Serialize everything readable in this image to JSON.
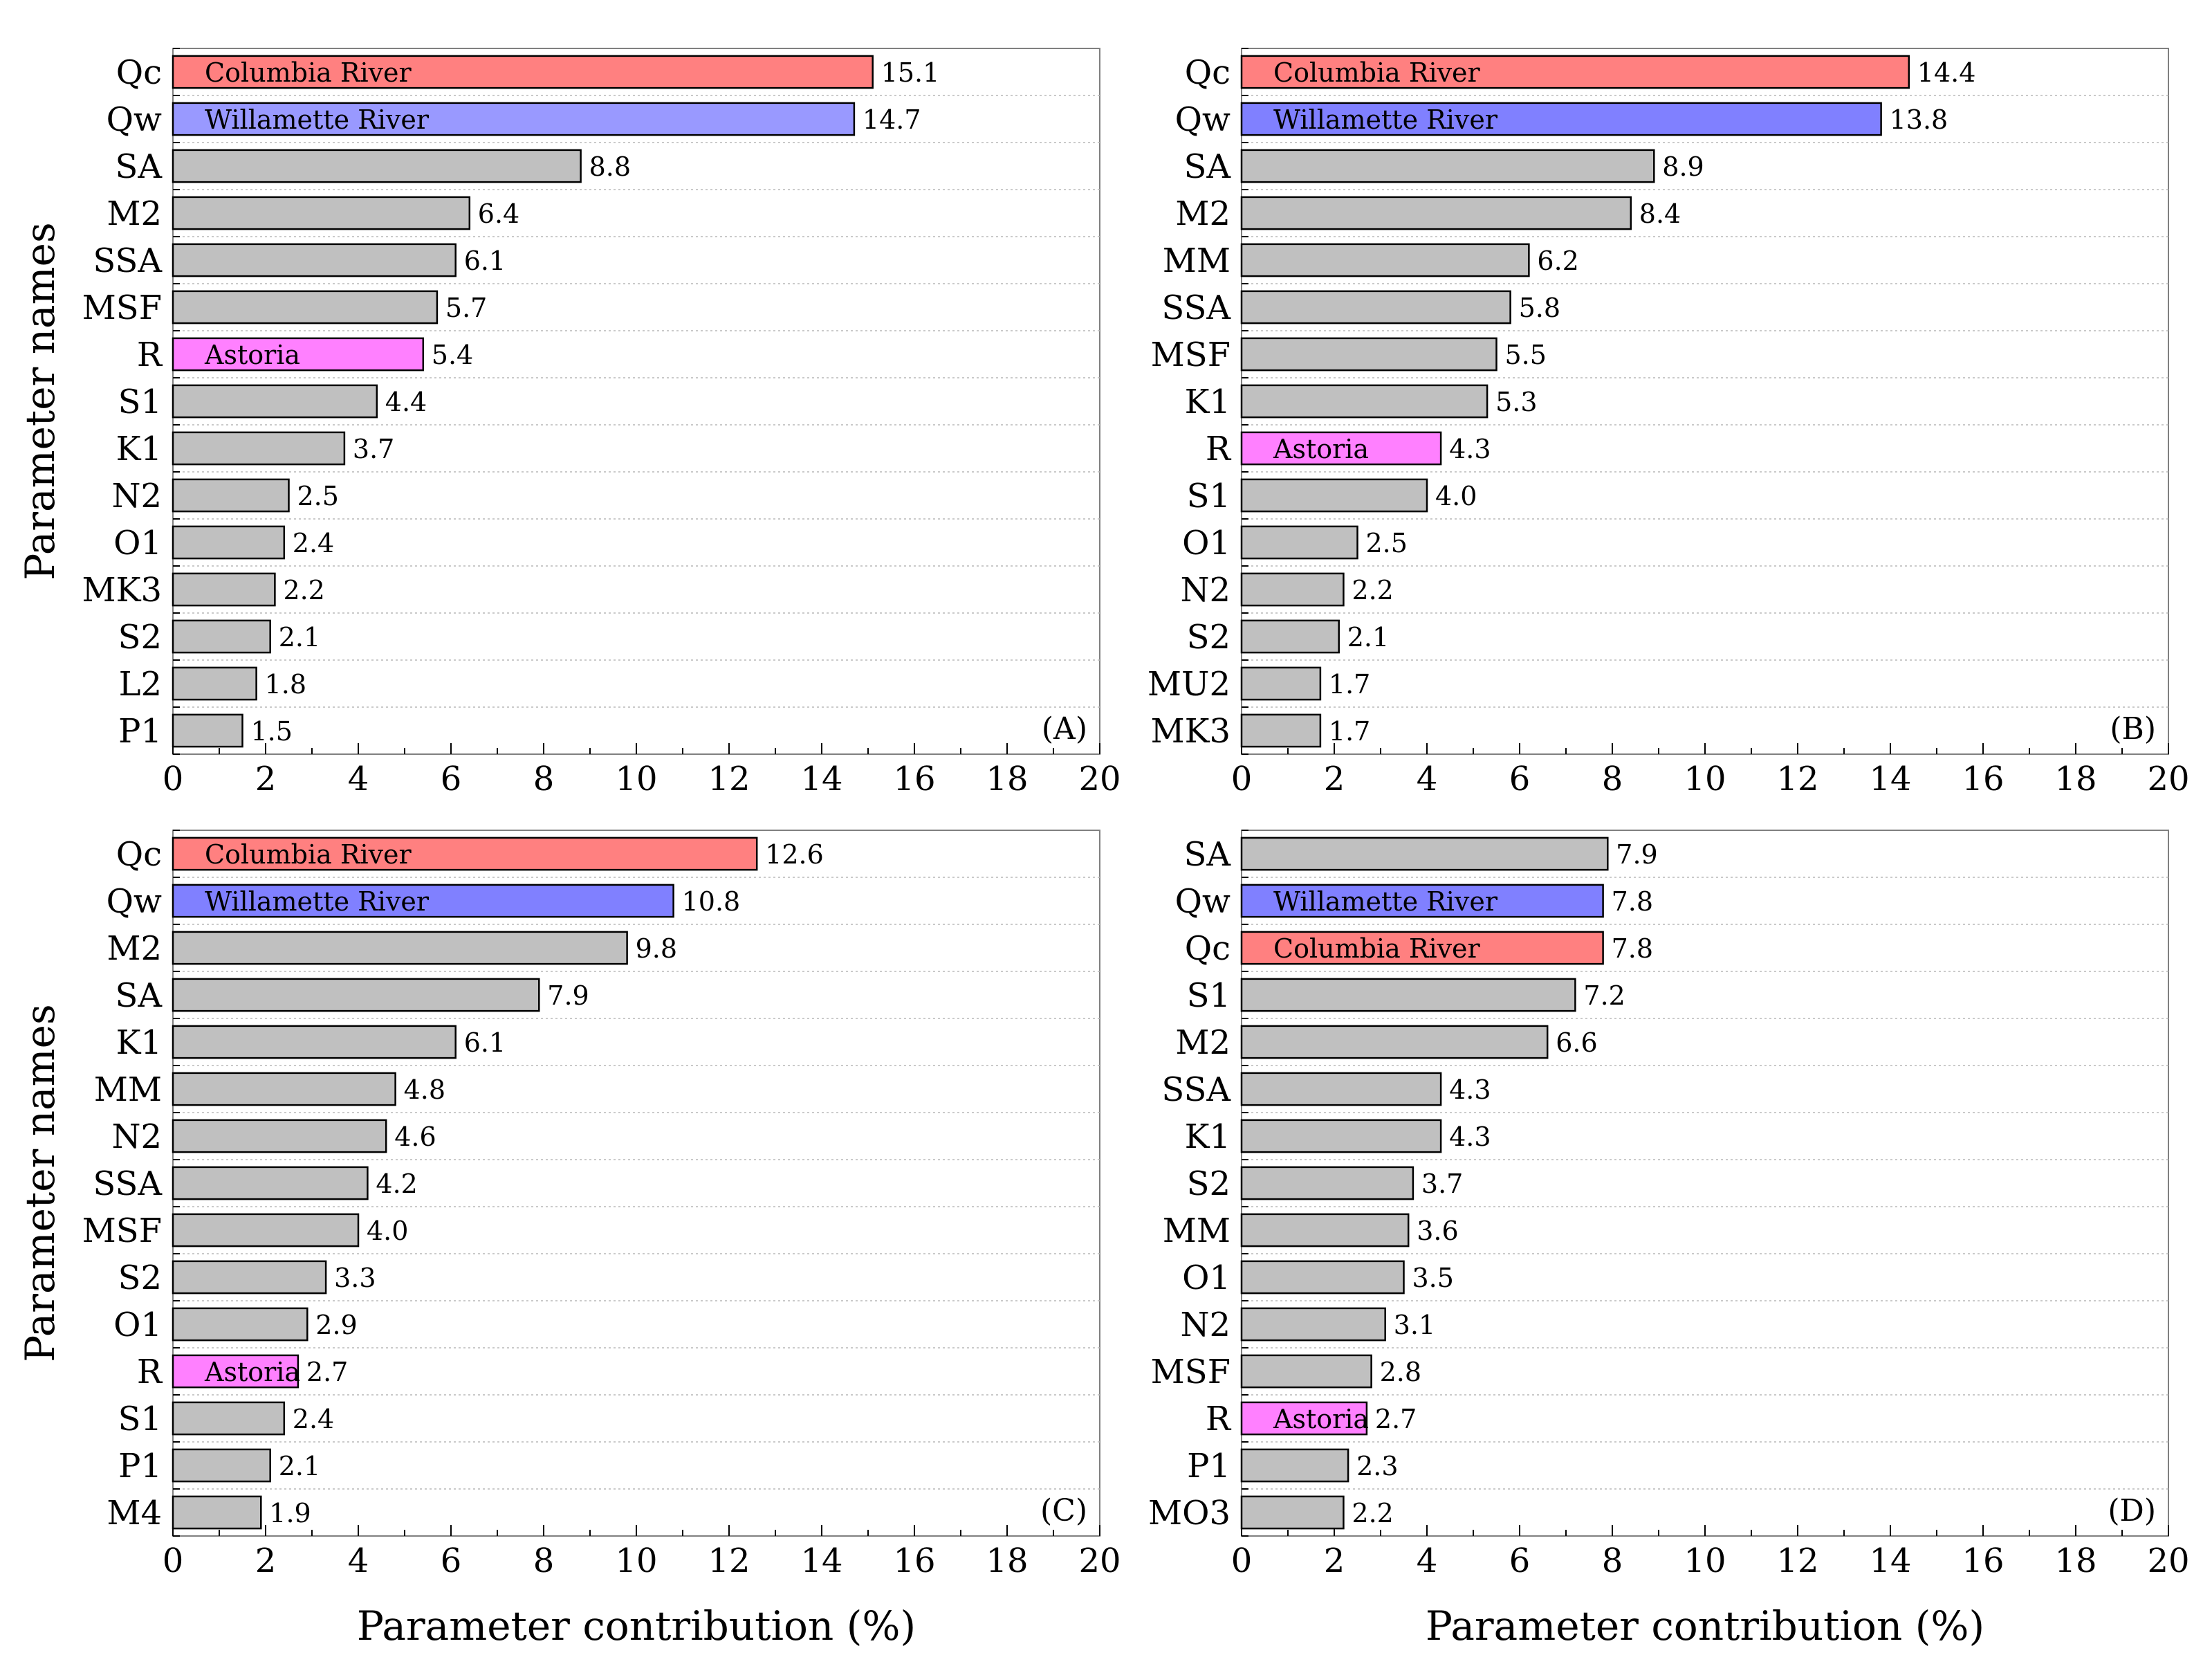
{
  "figure": {
    "ylabel": "Parameter names",
    "xlabel": "Parameter contribution (%)"
  },
  "colors": {
    "default": "#c0c0c0",
    "columbia": "#ff8080",
    "willamette_a": "#9999ff",
    "willamette": "#8080ff",
    "astoria": "#ff80ff"
  },
  "chart_data": [
    {
      "type": "bar",
      "orientation": "horizontal",
      "panel": "(A)",
      "xlim": [
        0,
        20
      ],
      "xticks": [
        0,
        2,
        4,
        6,
        8,
        10,
        12,
        14,
        16,
        18,
        20
      ],
      "xlabel": "",
      "ylabel": "Parameter names",
      "bars": [
        {
          "name": "Qc",
          "value": 15.1,
          "note": "Columbia River",
          "color": "#ff8080"
        },
        {
          "name": "Qw",
          "value": 14.7,
          "note": "Willamette River",
          "color": "#9999ff"
        },
        {
          "name": "SA",
          "value": 8.8
        },
        {
          "name": "M2",
          "value": 6.4
        },
        {
          "name": "SSA",
          "value": 6.1
        },
        {
          "name": "MSF",
          "value": 5.7
        },
        {
          "name": "R",
          "value": 5.4,
          "note": "Astoria",
          "color": "#ff80ff"
        },
        {
          "name": "S1",
          "value": 4.4
        },
        {
          "name": "K1",
          "value": 3.7
        },
        {
          "name": "N2",
          "value": 2.5
        },
        {
          "name": "O1",
          "value": 2.4
        },
        {
          "name": "MK3",
          "value": 2.2
        },
        {
          "name": "S2",
          "value": 2.1
        },
        {
          "name": "L2",
          "value": 1.8
        },
        {
          "name": "P1",
          "value": 1.5
        }
      ]
    },
    {
      "type": "bar",
      "orientation": "horizontal",
      "panel": "(B)",
      "xlim": [
        0,
        20
      ],
      "xticks": [
        0,
        2,
        4,
        6,
        8,
        10,
        12,
        14,
        16,
        18,
        20
      ],
      "xlabel": "",
      "ylabel": "",
      "bars": [
        {
          "name": "Qc",
          "value": 14.4,
          "note": "Columbia River",
          "color": "#ff8080"
        },
        {
          "name": "Qw",
          "value": 13.8,
          "note": "Willamette River",
          "color": "#8080ff"
        },
        {
          "name": "SA",
          "value": 8.9
        },
        {
          "name": "M2",
          "value": 8.4
        },
        {
          "name": "MM",
          "value": 6.2
        },
        {
          "name": "SSA",
          "value": 5.8
        },
        {
          "name": "MSF",
          "value": 5.5
        },
        {
          "name": "K1",
          "value": 5.3
        },
        {
          "name": "R",
          "value": 4.3,
          "note": "Astoria",
          "color": "#ff80ff"
        },
        {
          "name": "S1",
          "value": 4.0
        },
        {
          "name": "O1",
          "value": 2.5
        },
        {
          "name": "N2",
          "value": 2.2
        },
        {
          "name": "S2",
          "value": 2.1
        },
        {
          "name": "MU2",
          "value": 1.7
        },
        {
          "name": "MK3",
          "value": 1.7
        }
      ]
    },
    {
      "type": "bar",
      "orientation": "horizontal",
      "panel": "(C)",
      "xlim": [
        0,
        20
      ],
      "xticks": [
        0,
        2,
        4,
        6,
        8,
        10,
        12,
        14,
        16,
        18,
        20
      ],
      "xlabel": "Parameter contribution (%)",
      "ylabel": "Parameter names",
      "bars": [
        {
          "name": "Qc",
          "value": 12.6,
          "note": "Columbia River",
          "color": "#ff8080"
        },
        {
          "name": "Qw",
          "value": 10.8,
          "note": "Willamette River",
          "color": "#8080ff"
        },
        {
          "name": "M2",
          "value": 9.8
        },
        {
          "name": "SA",
          "value": 7.9
        },
        {
          "name": "K1",
          "value": 6.1
        },
        {
          "name": "MM",
          "value": 4.8
        },
        {
          "name": "N2",
          "value": 4.6
        },
        {
          "name": "SSA",
          "value": 4.2
        },
        {
          "name": "MSF",
          "value": 4.0
        },
        {
          "name": "S2",
          "value": 3.3
        },
        {
          "name": "O1",
          "value": 2.9
        },
        {
          "name": "R",
          "value": 2.7,
          "note": "Astoria",
          "color": "#ff80ff"
        },
        {
          "name": "S1",
          "value": 2.4
        },
        {
          "name": "P1",
          "value": 2.1
        },
        {
          "name": "M4",
          "value": 1.9
        }
      ]
    },
    {
      "type": "bar",
      "orientation": "horizontal",
      "panel": "(D)",
      "xlim": [
        0,
        20
      ],
      "xticks": [
        0,
        2,
        4,
        6,
        8,
        10,
        12,
        14,
        16,
        18,
        20
      ],
      "xlabel": "Parameter contribution (%)",
      "ylabel": "",
      "bars": [
        {
          "name": "SA",
          "value": 7.9
        },
        {
          "name": "Qw",
          "value": 7.8,
          "note": "Willamette River",
          "color": "#8080ff"
        },
        {
          "name": "Qc",
          "value": 7.8,
          "note": "Columbia River",
          "color": "#ff8080"
        },
        {
          "name": "S1",
          "value": 7.2
        },
        {
          "name": "M2",
          "value": 6.6
        },
        {
          "name": "SSA",
          "value": 4.3
        },
        {
          "name": "K1",
          "value": 4.3
        },
        {
          "name": "S2",
          "value": 3.7
        },
        {
          "name": "MM",
          "value": 3.6
        },
        {
          "name": "O1",
          "value": 3.5
        },
        {
          "name": "N2",
          "value": 3.1
        },
        {
          "name": "MSF",
          "value": 2.8
        },
        {
          "name": "R",
          "value": 2.7,
          "note": "Astoria",
          "color": "#ff80ff"
        },
        {
          "name": "P1",
          "value": 2.3
        },
        {
          "name": "MO3",
          "value": 2.2
        }
      ]
    }
  ]
}
